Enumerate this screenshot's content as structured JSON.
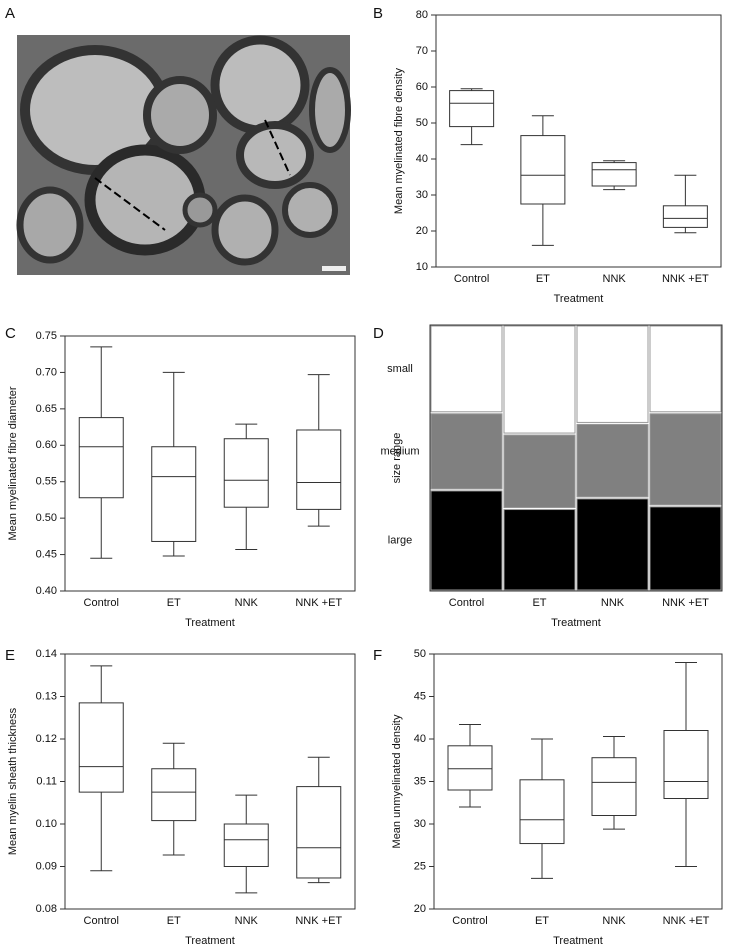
{
  "panel_labels": [
    "A",
    "B",
    "C",
    "D",
    "E",
    "F"
  ],
  "chart_data": [
    {
      "type": "box",
      "y_label": "Mean myelinated fibre density",
      "x_label": "Treatment",
      "categories": [
        "Control",
        "ET",
        "NNK",
        "NNK +ET"
      ],
      "min": [
        44,
        16,
        31.5,
        19.5
      ],
      "q1": [
        49,
        27.5,
        32.5,
        21
      ],
      "median": [
        55.5,
        35.5,
        37,
        23.5
      ],
      "q3": [
        59,
        46.5,
        39,
        27
      ],
      "max": [
        59.5,
        52,
        39.5,
        35.5
      ],
      "ylim": [
        10,
        80
      ],
      "yticks": [
        10,
        20,
        30,
        40,
        50,
        60,
        70,
        80
      ]
    },
    {
      "type": "box",
      "y_label": "Mean myelinated fibre diameter",
      "x_label": "Treatment",
      "categories": [
        "Control",
        "ET",
        "NNK",
        "NNK +ET"
      ],
      "min": [
        0.445,
        0.448,
        0.457,
        0.489
      ],
      "q1": [
        0.528,
        0.468,
        0.515,
        0.512
      ],
      "median": [
        0.598,
        0.557,
        0.552,
        0.549
      ],
      "q3": [
        0.638,
        0.598,
        0.609,
        0.621
      ],
      "max": [
        0.735,
        0.7,
        0.629,
        0.697
      ],
      "ylim": [
        0.4,
        0.75
      ],
      "yticks": [
        {
          "value": 0.4,
          "label": "0.40"
        },
        0.45,
        {
          "value": 0.5,
          "label": "0.50"
        },
        0.55,
        {
          "value": 0.6,
          "label": "0.60"
        },
        0.65,
        {
          "value": 0.7,
          "label": "0.70"
        },
        0.75
      ]
    },
    {
      "type": "mosaic",
      "y_label": "size range",
      "x_label": "Treatment",
      "categories": [
        "Control",
        "ET",
        "NNK",
        "NNK +ET"
      ],
      "series": [
        {
          "name": "large",
          "color": "#000000",
          "values": [
            38,
            31,
            35,
            32
          ]
        },
        {
          "name": "medium",
          "color": "#808080",
          "values": [
            29,
            28,
            28,
            35
          ]
        },
        {
          "name": "small",
          "color": "#ffffff",
          "values": [
            33,
            41,
            37,
            33
          ]
        }
      ]
    },
    {
      "type": "box",
      "y_label": "Mean myelin sheath thickness",
      "x_label": "Treatment",
      "categories": [
        "Control",
        "ET",
        "NNK",
        "NNK +ET"
      ],
      "min": [
        0.089,
        0.0927,
        0.0838,
        0.0862
      ],
      "q1": [
        0.1075,
        0.1008,
        0.09,
        0.0873
      ],
      "median": [
        0.1135,
        0.1075,
        0.0963,
        0.0944
      ],
      "q3": [
        0.1285,
        0.113,
        0.1,
        0.1088
      ],
      "max": [
        0.1372,
        0.119,
        0.1068,
        0.1157
      ],
      "ylim": [
        0.08,
        0.14
      ],
      "yticks": [
        0.08,
        0.09,
        {
          "value": 0.1,
          "label": "0.10"
        },
        0.11,
        0.12,
        0.13,
        0.14
      ]
    },
    {
      "type": "box",
      "y_label": "Mean unmyelinated density",
      "x_label": "Treatment",
      "categories": [
        "Control",
        "ET",
        "NNK",
        "NNK +ET"
      ],
      "min": [
        32,
        23.6,
        29.4,
        25
      ],
      "q1": [
        34,
        27.7,
        31,
        33
      ],
      "median": [
        36.5,
        30.5,
        34.9,
        35
      ],
      "q3": [
        39.2,
        35.2,
        37.8,
        41
      ],
      "max": [
        41.7,
        40,
        40.3,
        49
      ],
      "ylim": [
        20,
        50
      ],
      "yticks": [
        20,
        25,
        30,
        35,
        40,
        45,
        50
      ]
    }
  ]
}
